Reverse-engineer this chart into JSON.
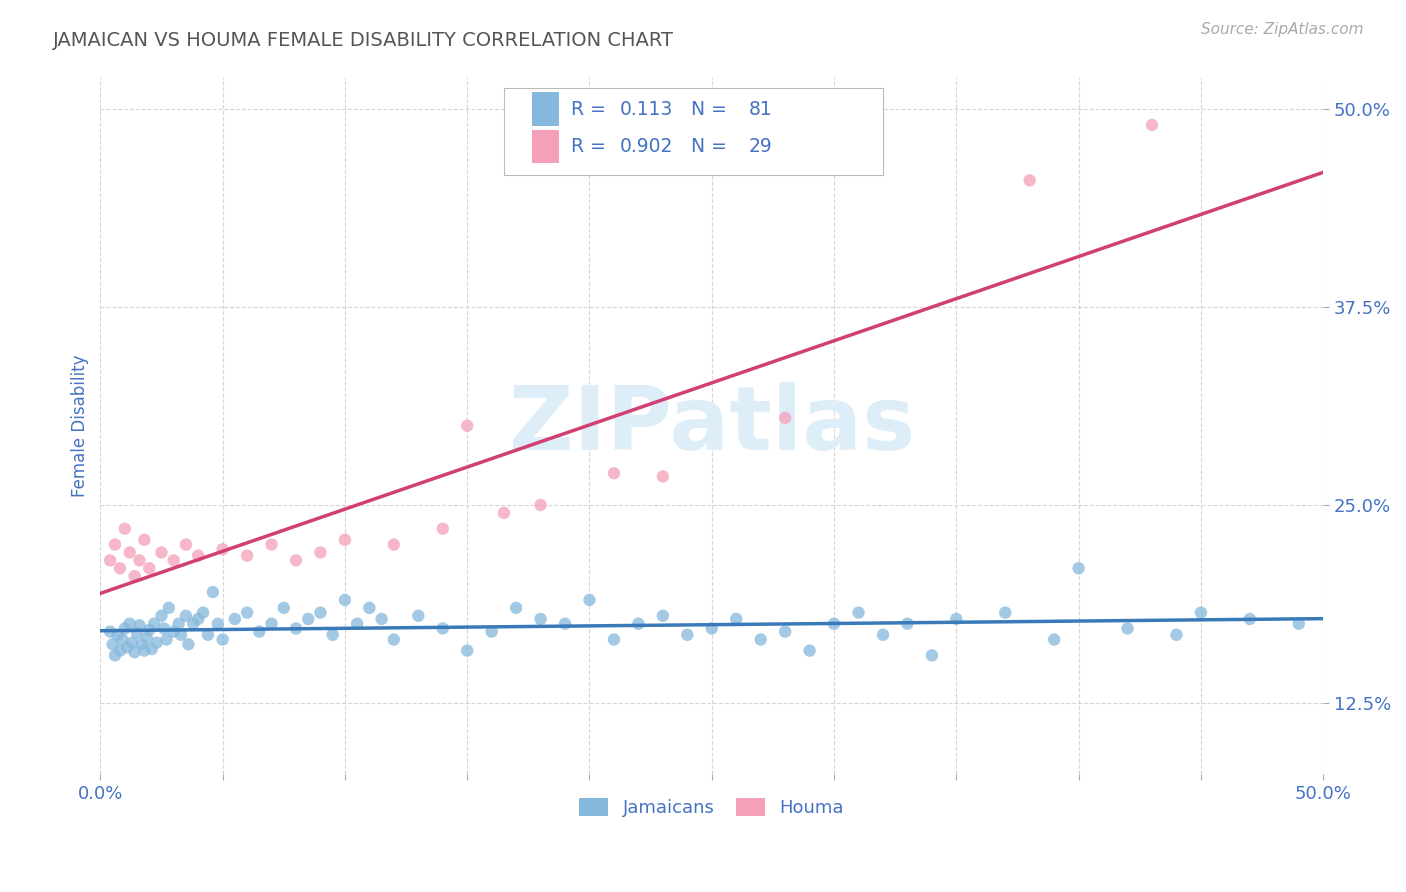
{
  "title": "JAMAICAN VS HOUMA FEMALE DISABILITY CORRELATION CHART",
  "source_text": "Source: ZipAtlas.com",
  "ylabel": "Female Disability",
  "xlim": [
    0.0,
    0.5
  ],
  "ylim": [
    0.08,
    0.52
  ],
  "yticks": [
    0.125,
    0.25,
    0.375,
    0.5
  ],
  "ytick_labels": [
    "12.5%",
    "25.0%",
    "37.5%",
    "50.0%"
  ],
  "xticks": [
    0.0,
    0.05,
    0.1,
    0.15,
    0.2,
    0.25,
    0.3,
    0.35,
    0.4,
    0.45,
    0.5
  ],
  "jamaicans_color": "#85b8dc",
  "houma_color": "#f4a0b8",
  "line_jamaicans_color": "#3a7ab8",
  "line_houma_color": "#d04070",
  "r_jamaicans": 0.113,
  "n_jamaicans": 81,
  "r_houma": 0.902,
  "n_houma": 29,
  "background_color": "#ffffff",
  "grid_color": "#cccccc",
  "title_color": "#555555",
  "axis_label_color": "#4472c4",
  "tick_label_color": "#4472c4",
  "legend_text_color": "#4472c4",
  "watermark_color": "#ddeef8",
  "jamaicans_x": [
    0.004,
    0.005,
    0.006,
    0.007,
    0.008,
    0.009,
    0.01,
    0.011,
    0.012,
    0.013,
    0.014,
    0.015,
    0.016,
    0.017,
    0.018,
    0.019,
    0.02,
    0.021,
    0.022,
    0.023,
    0.025,
    0.026,
    0.027,
    0.028,
    0.03,
    0.032,
    0.033,
    0.035,
    0.036,
    0.038,
    0.04,
    0.042,
    0.044,
    0.046,
    0.048,
    0.05,
    0.055,
    0.06,
    0.065,
    0.07,
    0.075,
    0.08,
    0.085,
    0.09,
    0.095,
    0.1,
    0.105,
    0.11,
    0.115,
    0.12,
    0.13,
    0.14,
    0.15,
    0.16,
    0.17,
    0.18,
    0.19,
    0.2,
    0.21,
    0.22,
    0.23,
    0.24,
    0.25,
    0.26,
    0.27,
    0.28,
    0.29,
    0.3,
    0.31,
    0.32,
    0.33,
    0.34,
    0.35,
    0.37,
    0.39,
    0.4,
    0.42,
    0.44,
    0.45,
    0.47,
    0.49
  ],
  "jamaicans_y": [
    0.17,
    0.162,
    0.155,
    0.168,
    0.158,
    0.165,
    0.172,
    0.16,
    0.175,
    0.163,
    0.157,
    0.169,
    0.174,
    0.162,
    0.158,
    0.166,
    0.171,
    0.159,
    0.175,
    0.163,
    0.18,
    0.172,
    0.165,
    0.185,
    0.17,
    0.175,
    0.168,
    0.18,
    0.162,
    0.175,
    0.178,
    0.182,
    0.168,
    0.195,
    0.175,
    0.165,
    0.178,
    0.182,
    0.17,
    0.175,
    0.185,
    0.172,
    0.178,
    0.182,
    0.168,
    0.19,
    0.175,
    0.185,
    0.178,
    0.165,
    0.18,
    0.172,
    0.158,
    0.17,
    0.185,
    0.178,
    0.175,
    0.19,
    0.165,
    0.175,
    0.18,
    0.168,
    0.172,
    0.178,
    0.165,
    0.17,
    0.158,
    0.175,
    0.182,
    0.168,
    0.175,
    0.155,
    0.178,
    0.182,
    0.165,
    0.21,
    0.172,
    0.168,
    0.182,
    0.178,
    0.175
  ],
  "houma_x": [
    0.004,
    0.006,
    0.008,
    0.01,
    0.012,
    0.014,
    0.016,
    0.018,
    0.02,
    0.025,
    0.03,
    0.035,
    0.04,
    0.05,
    0.06,
    0.07,
    0.08,
    0.09,
    0.1,
    0.12,
    0.14,
    0.15,
    0.165,
    0.18,
    0.21,
    0.23,
    0.28,
    0.38,
    0.43
  ],
  "houma_y": [
    0.215,
    0.225,
    0.21,
    0.235,
    0.22,
    0.205,
    0.215,
    0.228,
    0.21,
    0.22,
    0.215,
    0.225,
    0.218,
    0.222,
    0.218,
    0.225,
    0.215,
    0.22,
    0.228,
    0.225,
    0.235,
    0.3,
    0.245,
    0.25,
    0.27,
    0.268,
    0.305,
    0.455,
    0.49
  ]
}
